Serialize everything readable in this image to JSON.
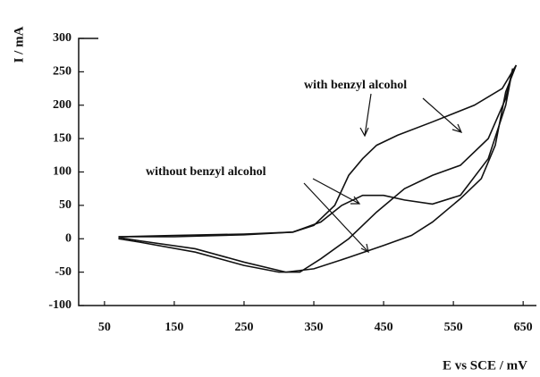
{
  "chart_data": {
    "type": "line",
    "y_label": "I / mA",
    "x_label": "E vs SCE / mV",
    "xlim": [
      13,
      669
    ],
    "xticks": [
      50,
      150,
      250,
      350,
      450,
      550,
      650
    ],
    "ylim": [
      -100,
      300
    ],
    "yticks": [
      -100,
      -50,
      0,
      50,
      100,
      150,
      200,
      250,
      300
    ],
    "series": [
      {
        "name": "with benzyl alcohol",
        "color": "#111111",
        "x": [
          70,
          150,
          250,
          320,
          350,
          380,
          400,
          420,
          440,
          470,
          520,
          580,
          620,
          640,
          625,
          610,
          590,
          560,
          520,
          490,
          450,
          400,
          350,
          310,
          250,
          180,
          100,
          70
        ],
        "values": [
          3,
          5,
          7,
          10,
          20,
          50,
          95,
          120,
          140,
          155,
          175,
          200,
          225,
          260,
          220,
          140,
          90,
          60,
          25,
          5,
          -10,
          -28,
          -45,
          -50,
          -35,
          -15,
          -3,
          2
        ]
      },
      {
        "name": "without benzyl alcohol",
        "color": "#111111",
        "x": [
          70,
          150,
          250,
          320,
          360,
          390,
          420,
          450,
          480,
          520,
          560,
          600,
          625,
          635,
          625,
          600,
          560,
          520,
          480,
          440,
          400,
          360,
          330,
          300,
          250,
          180,
          100,
          70
        ],
        "values": [
          3,
          3,
          6,
          10,
          25,
          50,
          65,
          65,
          58,
          52,
          65,
          120,
          200,
          255,
          210,
          150,
          110,
          95,
          75,
          40,
          0,
          -30,
          -50,
          -50,
          -40,
          -20,
          -5,
          0
        ]
      }
    ]
  }
}
